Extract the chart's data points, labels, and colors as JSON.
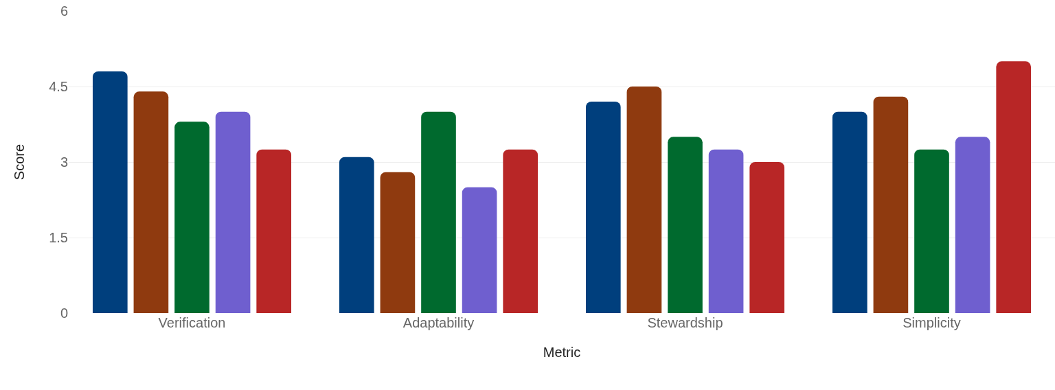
{
  "chart_data": {
    "type": "bar",
    "xlabel": "Metric",
    "ylabel": "Score",
    "categories": [
      "Verification",
      "Adaptability",
      "Stewardship",
      "Simplicity"
    ],
    "series": [
      {
        "color": "#003f7d",
        "values": [
          4.8,
          3.1,
          4.2,
          4.0
        ]
      },
      {
        "color": "#8f3a0f",
        "values": [
          4.4,
          2.8,
          4.5,
          4.3
        ]
      },
      {
        "color": "#006a2e",
        "values": [
          3.8,
          4.0,
          3.5,
          3.25
        ]
      },
      {
        "color": "#6f5fcf",
        "values": [
          4.0,
          2.5,
          3.25,
          3.5
        ]
      },
      {
        "color": "#b82626",
        "values": [
          3.25,
          3.25,
          3.0,
          5.0
        ]
      }
    ],
    "ylim": [
      0,
      6
    ],
    "yticks": [
      0,
      1.5,
      3,
      4.5,
      6
    ],
    "grid": "y"
  }
}
